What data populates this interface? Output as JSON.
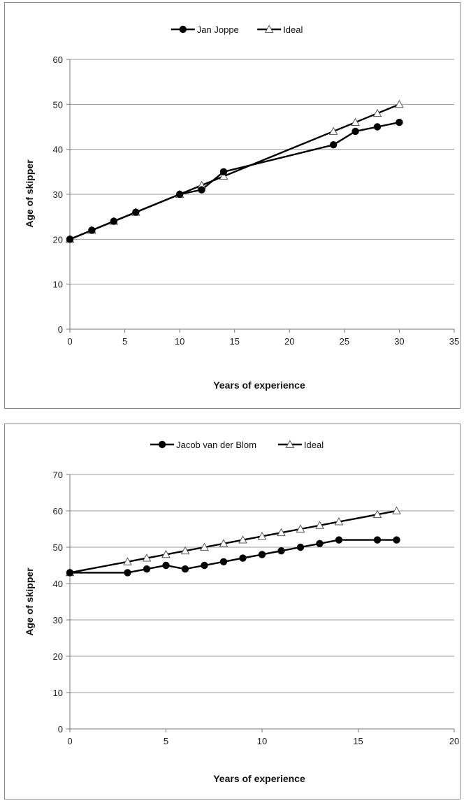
{
  "chart_data": [
    {
      "type": "line",
      "xlabel": "Years of experience",
      "ylabel": "Age of skipper",
      "xlim": [
        0,
        35
      ],
      "ylim": [
        0,
        60
      ],
      "xticks": [
        0,
        5,
        10,
        15,
        20,
        25,
        30,
        35
      ],
      "yticks": [
        0,
        10,
        20,
        30,
        40,
        50,
        60
      ],
      "grid": "horizontal",
      "legend_position": "top",
      "series": [
        {
          "name": "Jan Joppe",
          "marker": "filled-circle",
          "color": "#000000",
          "x": [
            0,
            2,
            4,
            6,
            10,
            12,
            14,
            24,
            26,
            28,
            30
          ],
          "y": [
            20,
            22,
            24,
            26,
            30,
            31,
            35,
            41,
            44,
            45,
            46
          ]
        },
        {
          "name": "Ideal",
          "marker": "open-triangle",
          "color": "#000000",
          "x": [
            0,
            2,
            4,
            6,
            10,
            12,
            14,
            24,
            26,
            28,
            30
          ],
          "y": [
            20,
            22,
            24,
            26,
            30,
            32,
            34,
            44,
            46,
            48,
            50
          ]
        }
      ]
    },
    {
      "type": "line",
      "xlabel": "Years of experience",
      "ylabel": "Age of skipper",
      "xlim": [
        0,
        20
      ],
      "ylim": [
        0,
        70
      ],
      "xticks": [
        0,
        5,
        10,
        15,
        20
      ],
      "yticks": [
        0,
        10,
        20,
        30,
        40,
        50,
        60,
        70
      ],
      "grid": "horizontal",
      "legend_position": "top",
      "series": [
        {
          "name": "Jacob van der Blom",
          "marker": "filled-circle",
          "color": "#000000",
          "x": [
            0,
            3,
            4,
            5,
            6,
            7,
            8,
            9,
            10,
            11,
            12,
            13,
            14,
            16,
            17
          ],
          "y": [
            43,
            43,
            44,
            45,
            44,
            45,
            46,
            47,
            48,
            49,
            50,
            51,
            52,
            52,
            52
          ]
        },
        {
          "name": "Ideal",
          "marker": "open-triangle",
          "color": "#000000",
          "x": [
            0,
            3,
            4,
            5,
            6,
            7,
            8,
            9,
            10,
            11,
            12,
            13,
            14,
            16,
            17
          ],
          "y": [
            43,
            46,
            47,
            48,
            49,
            50,
            51,
            52,
            53,
            54,
            55,
            56,
            57,
            59,
            60
          ]
        }
      ]
    }
  ]
}
